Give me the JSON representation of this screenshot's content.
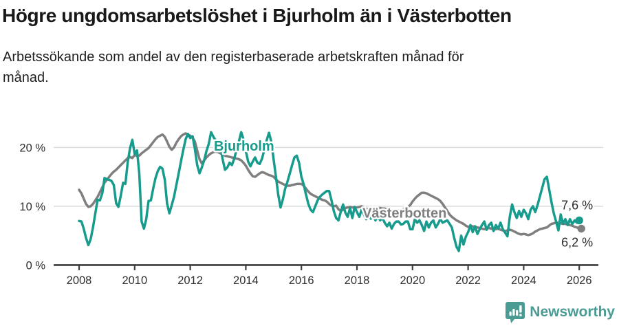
{
  "header": {
    "title": "Högre ungdomsarbetslöshet i Bjurholm än i Västerbotten",
    "subtitle_lines": [
      "Arbetssökande som andel av den registerbaserade arbetskraften månad för",
      "månad."
    ]
  },
  "chart_data": {
    "type": "line",
    "title": "Högre ungdomsarbetslöshet i Bjurholm än i Västerbotten",
    "subtitle": "Arbetssökande som andel av den registerbaserade arbetskraften månad för månad.",
    "unit": "%",
    "x_start_year": 2008,
    "x_end_year": 2026,
    "points_per_year": 12,
    "x_ticks": [
      2008,
      2010,
      2012,
      2014,
      2016,
      2018,
      2020,
      2022,
      2024,
      2026
    ],
    "y_ticks": [
      {
        "value": 0,
        "label": "0 %"
      },
      {
        "value": 10,
        "label": "10 %"
      },
      {
        "value": 20,
        "label": "20 %"
      }
    ],
    "ylim": [
      0,
      23.5
    ],
    "grid": "horizontal",
    "legend_position": "inline-labels",
    "colors": {
      "bjurholm": "#169b8c",
      "vasterbotten": "#7f7f7f",
      "gridline": "#d9d9d9",
      "axis": "#3c3c3c"
    },
    "series": [
      {
        "name": "Västerbotten",
        "key": "vasterbotten",
        "color": "#7f7f7f",
        "end_value": 6.2,
        "end_label": "6,2 %",
        "label": {
          "year": 2018.2,
          "pct": 8.9,
          "anchor": "start"
        },
        "end_label_offset": {
          "dx": 17,
          "dy": 26
        },
        "dot_dx": 3,
        "values": [
          12.8,
          12.2,
          11.3,
          10.4,
          9.9,
          10.0,
          10.4,
          11.0,
          11.6,
          12.4,
          13.2,
          14.0,
          14.5,
          15.0,
          15.5,
          15.9,
          16.2,
          16.6,
          17.0,
          17.4,
          17.8,
          18.2,
          18.4,
          18.2,
          18.7,
          18.6,
          18.6,
          19.0,
          19.3,
          19.6,
          19.9,
          20.4,
          20.9,
          21.4,
          21.8,
          22.0,
          22.2,
          21.8,
          21.0,
          20.1,
          19.6,
          20.0,
          20.8,
          21.4,
          21.9,
          22.2,
          22.4,
          22.2,
          22.0,
          21.7,
          21.0,
          19.5,
          18.0,
          17.3,
          17.8,
          18.3,
          18.7,
          19.0,
          19.2,
          19.3,
          19.2,
          19.0,
          18.8,
          18.6,
          18.5,
          18.4,
          18.3,
          18.2,
          18.1,
          18.0,
          17.8,
          17.4,
          16.9,
          16.2,
          15.6,
          15.1,
          15.0,
          15.3,
          15.6,
          15.8,
          15.7,
          15.5,
          15.3,
          15.2,
          15.0,
          14.6,
          14.2,
          14.0,
          13.8,
          13.6,
          13.5,
          13.5,
          13.6,
          13.7,
          13.8,
          13.8,
          13.8,
          13.5,
          13.0,
          12.5,
          12.1,
          11.9,
          11.7,
          11.5,
          11.3,
          11.1,
          11.0,
          10.8,
          10.4,
          10.1,
          10.0,
          10.1,
          9.5,
          9.2,
          9.4,
          9.7,
          9.8,
          9.9,
          9.8,
          9.8,
          9.8,
          9.9,
          10.0,
          9.8,
          9.6,
          9.5,
          9.4,
          9.5,
          9.6,
          9.7,
          9.7,
          9.6,
          9.6,
          9.5,
          9.4,
          9.3,
          9.2,
          9.2,
          9.3,
          9.4,
          9.5,
          9.7,
          9.9,
          10.2,
          10.8,
          11.3,
          11.7,
          12.0,
          12.3,
          12.3,
          12.2,
          12.0,
          11.8,
          11.6,
          11.4,
          11.2,
          10.9,
          10.4,
          9.8,
          9.2,
          8.6,
          8.2,
          7.9,
          7.6,
          7.4,
          7.2,
          7.0,
          6.7,
          6.5,
          6.6,
          6.6,
          6.5,
          6.4,
          6.3,
          6.2,
          6.1,
          6.2,
          6.3,
          6.2,
          6.1,
          6.1,
          6.2,
          6.0,
          5.9,
          5.8,
          5.9,
          6.0,
          5.9,
          5.7,
          5.5,
          5.3,
          5.2,
          5.3,
          5.2,
          5.1,
          5.2,
          5.4,
          5.7,
          5.9,
          6.1,
          6.2,
          6.3,
          6.4,
          6.7,
          7.0,
          7.1,
          7.2,
          7.2,
          7.1,
          7.0,
          7.0,
          6.9,
          6.8,
          6.7,
          6.5,
          6.4,
          6.2
        ]
      },
      {
        "name": "Bjurholm",
        "key": "bjurholm",
        "color": "#169b8c",
        "end_value": 7.6,
        "end_label": "7,6 %",
        "label": {
          "year": 2012.85,
          "pct": 20.3,
          "anchor": "start"
        },
        "end_label_offset": {
          "dx": 20,
          "dy": -16
        },
        "dot_dx": 0,
        "values": [
          7.5,
          7.4,
          6.2,
          4.6,
          3.4,
          4.4,
          6.4,
          8.8,
          11.1,
          11.0,
          12.2,
          14.8,
          14.6,
          14.5,
          14.3,
          13.6,
          10.5,
          9.9,
          11.8,
          14.0,
          13.8,
          17.5,
          19.9,
          21.3,
          18.9,
          19.5,
          15.6,
          7.4,
          6.2,
          7.8,
          10.9,
          11.0,
          13.0,
          14.8,
          16.0,
          16.7,
          16.4,
          14.5,
          10.5,
          8.8,
          10.2,
          11.6,
          13.6,
          15.6,
          17.6,
          19.6,
          21.4,
          22.3,
          21.6,
          21.9,
          19.8,
          17.0,
          15.6,
          16.6,
          17.8,
          19.4,
          20.6,
          22.6,
          21.8,
          21.2,
          21.0,
          20.4,
          18.0,
          16.2,
          16.6,
          17.4,
          17.0,
          18.1,
          19.6,
          21.0,
          22.6,
          21.4,
          19.4,
          17.6,
          16.8,
          17.6,
          18.3,
          17.4,
          17.2,
          18.1,
          19.6,
          21.2,
          22.5,
          21.0,
          18.0,
          15.0,
          12.0,
          9.8,
          11.2,
          13.0,
          14.2,
          15.6,
          17.0,
          18.3,
          18.6,
          17.4,
          15.0,
          13.7,
          12.0,
          10.4,
          9.4,
          9.0,
          10.0,
          11.0,
          11.6,
          12.0,
          12.3,
          12.6,
          12.6,
          11.0,
          9.2,
          8.0,
          7.6,
          9.0,
          10.3,
          8.9,
          8.2,
          9.7,
          8.0,
          9.9,
          9.0,
          8.2,
          9.4,
          8.6,
          7.8,
          8.8,
          7.9,
          8.4,
          7.6,
          8.3,
          7.6,
          8.0,
          7.2,
          6.6,
          7.2,
          6.2,
          7.0,
          7.4,
          7.4,
          6.9,
          7.0,
          7.4,
          7.4,
          6.1,
          6.1,
          7.8,
          7.2,
          7.6,
          6.8,
          5.8,
          7.4,
          6.4,
          7.2,
          7.6,
          6.4,
          7.0,
          7.8,
          7.2,
          7.4,
          7.6,
          7.0,
          6.4,
          4.6,
          3.1,
          2.4,
          5.0,
          3.5,
          4.8,
          5.6,
          6.8,
          5.6,
          6.6,
          5.3,
          6.1,
          6.8,
          7.4,
          6.0,
          6.8,
          7.2,
          5.8,
          6.8,
          6.2,
          7.2,
          6.1,
          5.5,
          4.9,
          8.2,
          10.3,
          9.0,
          8.0,
          9.2,
          8.2,
          9.4,
          8.8,
          7.8,
          9.4,
          10.0,
          9.0,
          10.2,
          11.7,
          13.1,
          14.6,
          15.0,
          12.9,
          10.7,
          8.8,
          7.4,
          5.9,
          8.6,
          7.0,
          7.8,
          6.8,
          7.8,
          7.0,
          7.6,
          7.2,
          7.6
        ]
      }
    ]
  },
  "footer": {
    "brand": "Newsworthy",
    "brand_color": "#4a9b93",
    "logo_icon": "bar-chart-speech-bubble-icon"
  }
}
